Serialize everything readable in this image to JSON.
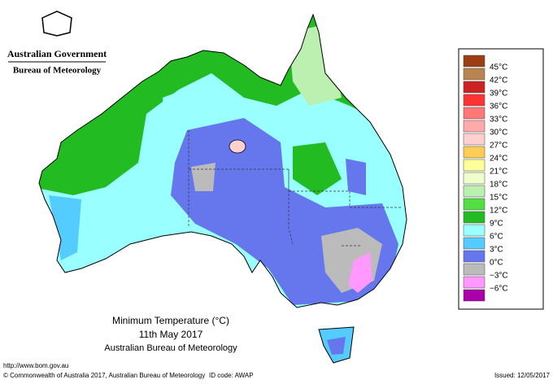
{
  "header": {
    "government": "Australian Government",
    "bureau": "Bureau of Meteorology"
  },
  "title": {
    "line1": "Minimum Temperature (°C)",
    "line2": "11th May 2017",
    "line3": "Australian Bureau of Meteorology"
  },
  "legend": {
    "items": [
      {
        "label": "45°C",
        "color": "#9c3d14"
      },
      {
        "label": "42°C",
        "color": "#b8844f"
      },
      {
        "label": "39°C",
        "color": "#cc2222"
      },
      {
        "label": "36°C",
        "color": "#ff3333"
      },
      {
        "label": "33°C",
        "color": "#ff7777"
      },
      {
        "label": "30°C",
        "color": "#ffaaaa"
      },
      {
        "label": "27°C",
        "color": "#ffd0d0"
      },
      {
        "label": "24°C",
        "color": "#ffcc55"
      },
      {
        "label": "21°C",
        "color": "#ffff99"
      },
      {
        "label": "18°C",
        "color": "#eeffcc"
      },
      {
        "label": "15°C",
        "color": "#bbf0b0"
      },
      {
        "label": "12°C",
        "color": "#55dd44"
      },
      {
        "label": "9°C",
        "color": "#22bb22"
      },
      {
        "label": "6°C",
        "color": "#99ffff"
      },
      {
        "label": "3°C",
        "color": "#55ccff"
      },
      {
        "label": "0°C",
        "color": "#6677ee"
      },
      {
        "label": "−3°C",
        "color": "#bbbbbb"
      },
      {
        "label": "−6°C",
        "color": "#ff99ff"
      }
    ],
    "bottom_color": "#aa00aa"
  },
  "footer": {
    "url": "http://www.bom.gov.au",
    "copyright": "© Commonwealth of Australia 2017, Australian Bureau of Meteorology",
    "id_code": "ID code: AWAP",
    "issued": "Issued: 12/05/2017"
  }
}
